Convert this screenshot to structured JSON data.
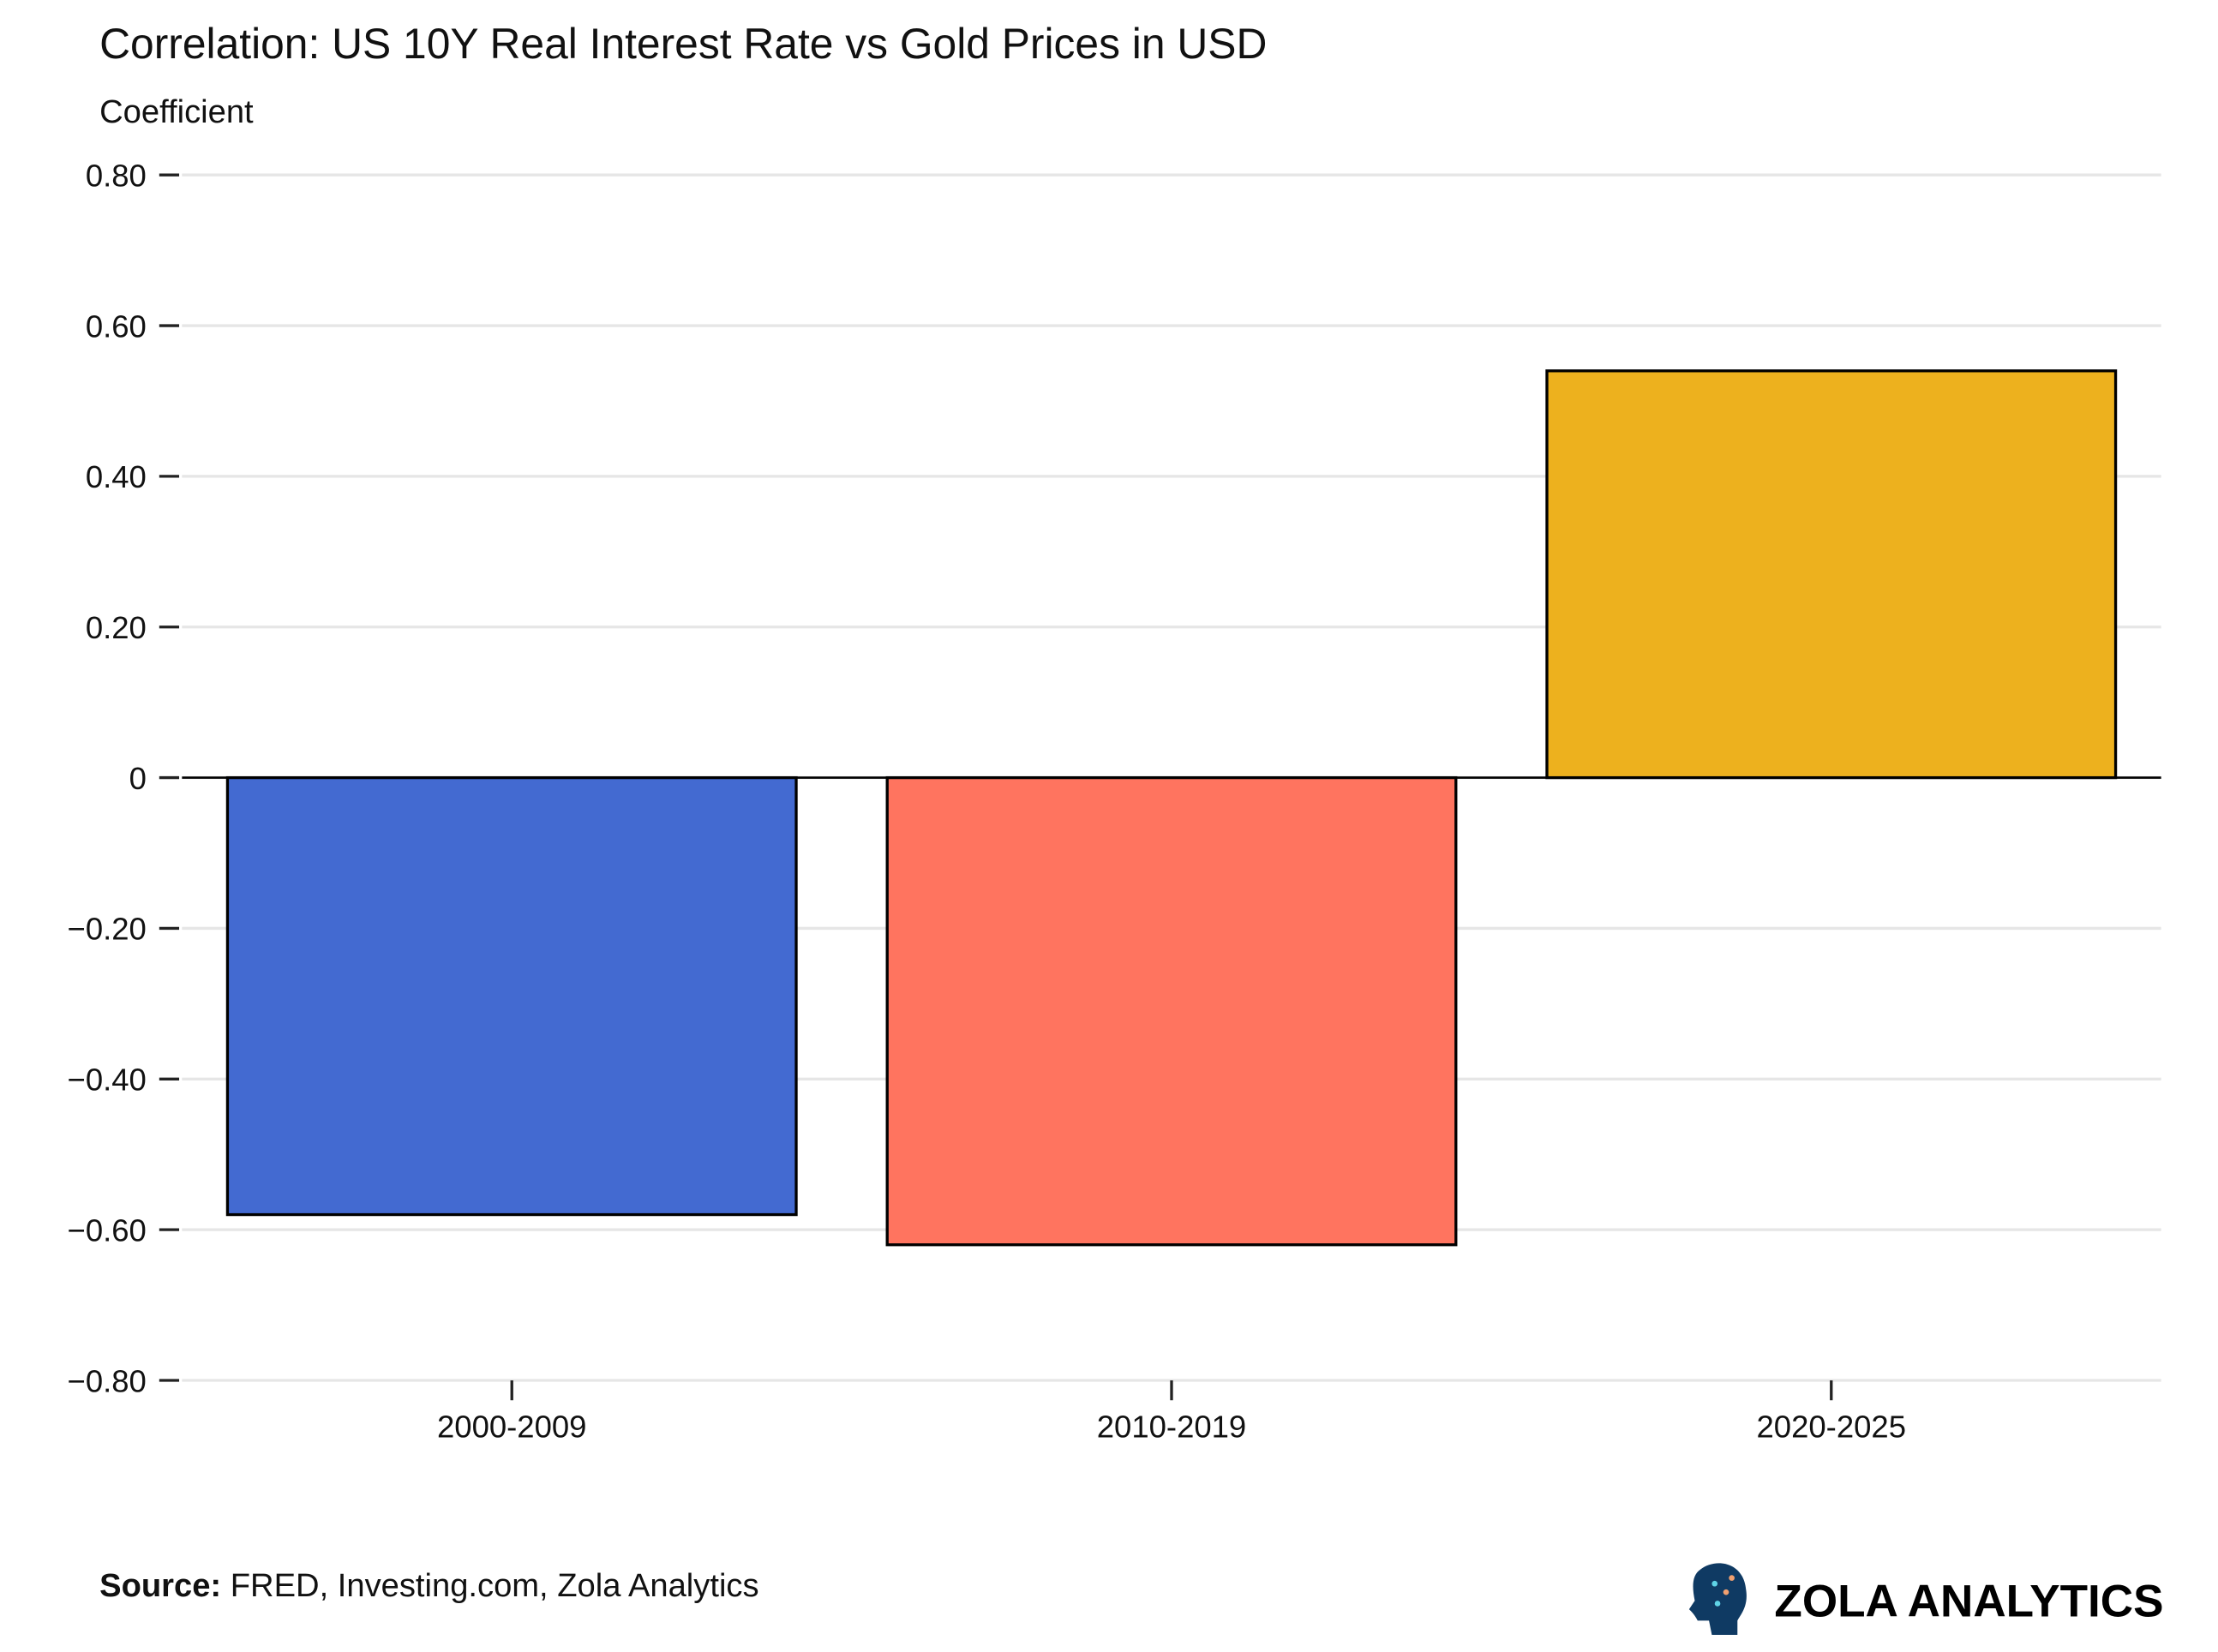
{
  "chart_data": {
    "type": "bar",
    "title": "Correlation: US 10Y Real Interest Rate vs Gold Prices in USD",
    "subtitle": "Coefficient",
    "xlabel": "",
    "ylabel": "",
    "categories": [
      "2000-2009",
      "2010-2019",
      "2020-2025"
    ],
    "values": [
      -0.58,
      -0.62,
      0.54
    ],
    "colors": [
      "#436AD1",
      "#FF745F",
      "#EDB11E"
    ],
    "ylim": [
      -0.8,
      0.8
    ],
    "yticks": [
      0.8,
      0.6,
      0.4,
      0.2,
      0,
      -0.2,
      -0.4,
      -0.6,
      -0.8
    ],
    "ytick_labels": [
      "0.80",
      "0.60",
      "0.40",
      "0.20",
      "0",
      "−0.20",
      "−0.40",
      "−0.60",
      "−0.80"
    ],
    "grid": true,
    "legend": "none"
  },
  "footer": {
    "source_label": "Source:",
    "source_text": " FRED, Investing.com, Zola Analytics",
    "brand": "ZOLA ANALYTICS"
  }
}
